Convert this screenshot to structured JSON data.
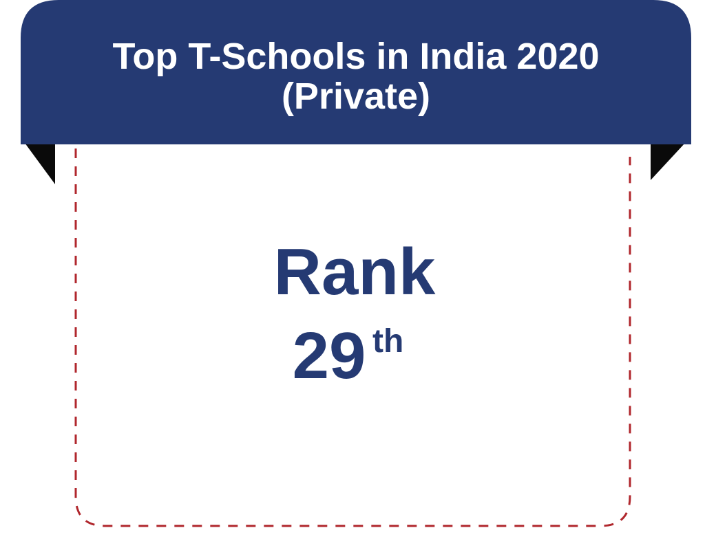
{
  "header": {
    "title_lines": [
      "Top T-Schools in India 2020",
      "(Private)"
    ]
  },
  "body": {
    "label": "Rank",
    "rank_number": "29",
    "rank_suffix": "th"
  }
}
